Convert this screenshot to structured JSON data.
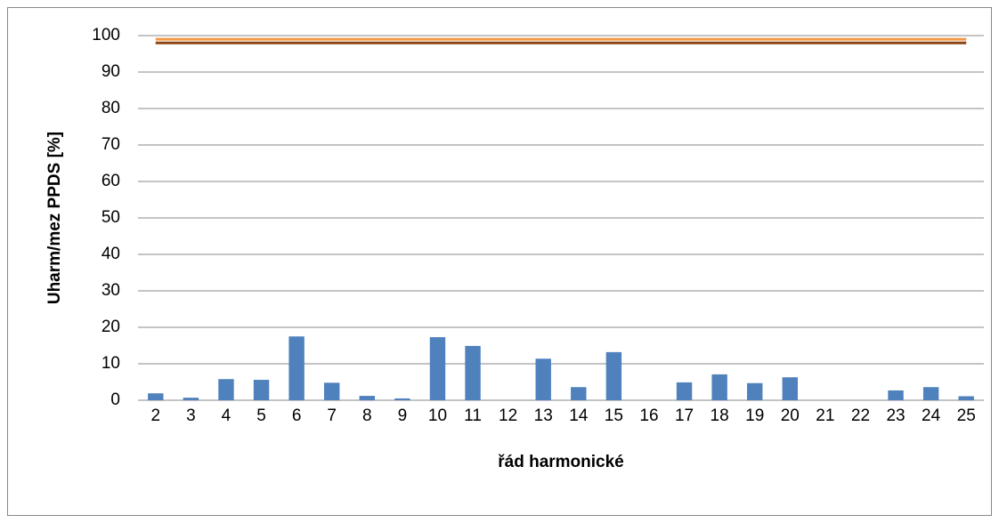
{
  "chart_data": {
    "type": "bar",
    "x_label": "řád harmonické",
    "y_label": "Uharm/mez PPDS [%]",
    "categories": [
      "2",
      "3",
      "4",
      "5",
      "6",
      "7",
      "8",
      "9",
      "10",
      "11",
      "12",
      "13",
      "14",
      "15",
      "16",
      "17",
      "18",
      "19",
      "20",
      "21",
      "22",
      "23",
      "24",
      "25"
    ],
    "series": [
      {
        "type": "bar",
        "color": "#4f81bd",
        "values": [
          1.9,
          0.7,
          5.8,
          5.6,
          17.5,
          4.8,
          1.2,
          0.5,
          17.3,
          14.9,
          0,
          11.4,
          3.6,
          13.2,
          0,
          4.9,
          7.1,
          4.7,
          6.3,
          0,
          0,
          2.7,
          3.6,
          1.1
        ]
      },
      {
        "type": "line",
        "color": "#f79646",
        "values": [
          99,
          99,
          99,
          99,
          99,
          99,
          99,
          99,
          99,
          99,
          99,
          99,
          99,
          99,
          99,
          99,
          99,
          99,
          99,
          99,
          99,
          99,
          99,
          99
        ]
      },
      {
        "type": "line",
        "color": "#8b4513",
        "values": [
          98,
          98,
          98,
          98,
          98,
          98,
          98,
          98,
          98,
          98,
          98,
          98,
          98,
          98,
          98,
          98,
          98,
          98,
          98,
          98,
          98,
          98,
          98,
          98
        ]
      }
    ],
    "ylim": [
      0,
      100
    ],
    "yticks": [
      0,
      10,
      20,
      30,
      40,
      50,
      60,
      70,
      80,
      90,
      100
    ],
    "grid": true
  }
}
